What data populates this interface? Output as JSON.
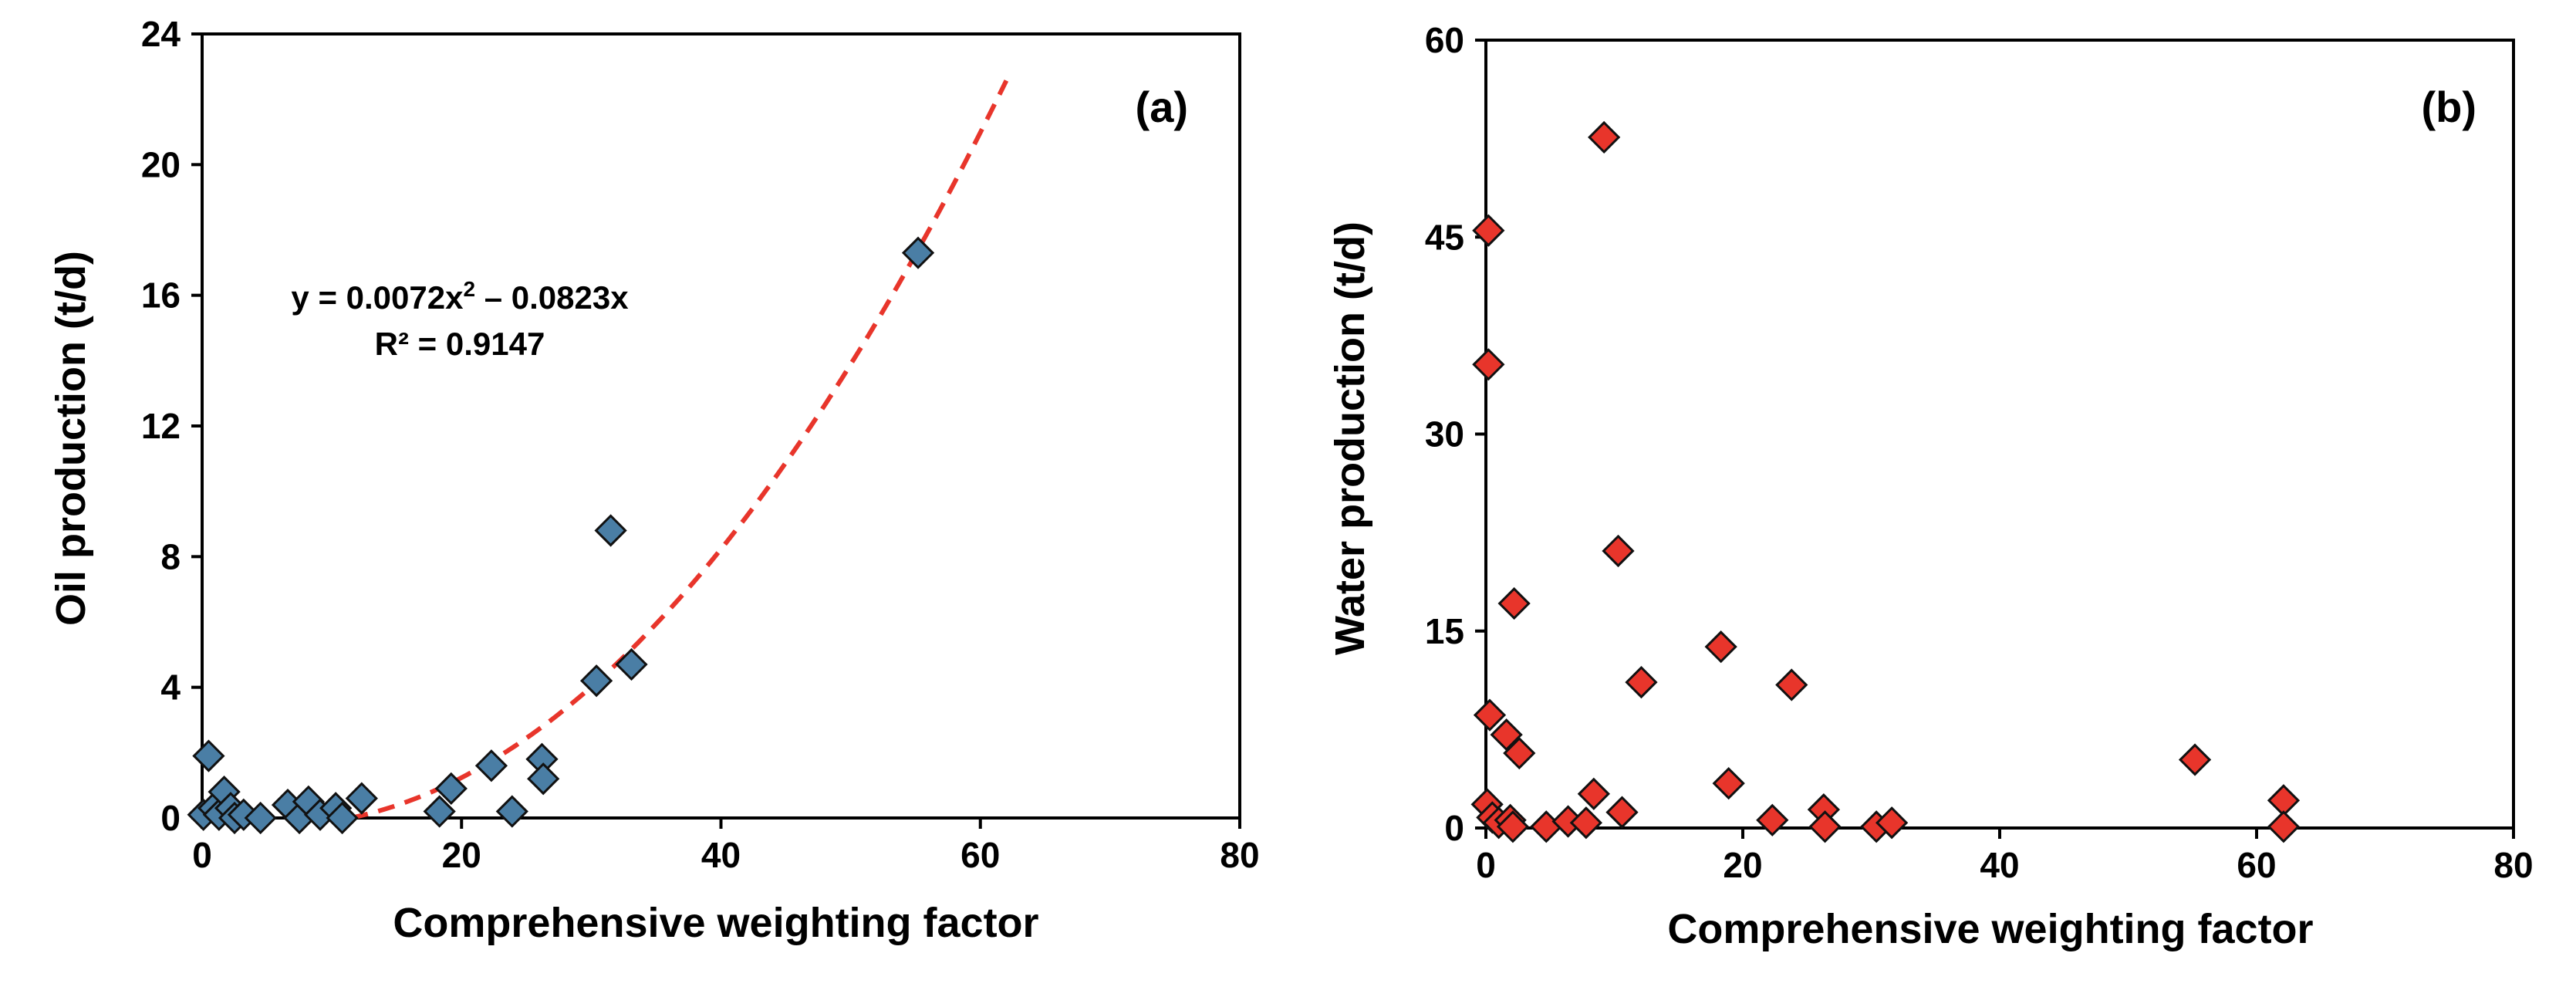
{
  "chart_data": [
    {
      "type": "scatter",
      "panel_label": "(a)",
      "xlabel": "Comprehensive weighting factor",
      "ylabel": "Oil production (t/d)",
      "xlim": [
        0,
        80
      ],
      "ylim": [
        0,
        24
      ],
      "xticks": [
        0,
        20,
        40,
        60,
        80
      ],
      "yticks": [
        0,
        4,
        8,
        12,
        16,
        20,
        24
      ],
      "marker_color": "#4a7ea5",
      "trend_color": "#e8352b",
      "equation": "y = 0.0072x",
      "equation_exponent": "2",
      "equation_tail": " – 0.0823x",
      "r_squared": "R² = 0.9147",
      "trend": {
        "a": 0.0072,
        "b": -0.0823,
        "c": 0,
        "x_range": [
          11.5,
          62
        ]
      },
      "series": [
        {
          "name": "Oil production",
          "points": [
            [
              0.1,
              0.1
            ],
            [
              0.5,
              1.9
            ],
            [
              0.9,
              0.3
            ],
            [
              1.3,
              0.1
            ],
            [
              1.7,
              0.8
            ],
            [
              2.2,
              0.3
            ],
            [
              2.5,
              0.0
            ],
            [
              3.2,
              0.1
            ],
            [
              4.5,
              0.0
            ],
            [
              6.6,
              0.4
            ],
            [
              7.5,
              0.0
            ],
            [
              8.2,
              0.5
            ],
            [
              9.1,
              0.1
            ],
            [
              10.3,
              0.3
            ],
            [
              10.8,
              0.0
            ],
            [
              12.3,
              0.6
            ],
            [
              18.3,
              0.2
            ],
            [
              19.2,
              0.9
            ],
            [
              22.3,
              1.6
            ],
            [
              23.9,
              0.2
            ],
            [
              26.2,
              1.8
            ],
            [
              26.3,
              1.2
            ],
            [
              30.4,
              4.2
            ],
            [
              31.5,
              8.8
            ],
            [
              33.1,
              4.7
            ],
            [
              55.2,
              17.3
            ]
          ]
        }
      ]
    },
    {
      "type": "scatter",
      "panel_label": "(b)",
      "xlabel": "Comprehensive weighting factor",
      "ylabel": "Water production (t/d)",
      "xlim": [
        0,
        80
      ],
      "ylim": [
        0,
        60
      ],
      "xticks": [
        0,
        20,
        40,
        60,
        80
      ],
      "yticks": [
        0,
        15,
        30,
        45,
        60
      ],
      "marker_color": "#e8352b",
      "series": [
        {
          "name": "Water production",
          "points": [
            [
              0.2,
              45.5
            ],
            [
              0.2,
              35.3
            ],
            [
              0.3,
              8.6
            ],
            [
              0.1,
              1.8
            ],
            [
              0.5,
              0.8
            ],
            [
              1.0,
              0.4
            ],
            [
              1.6,
              7.1
            ],
            [
              1.9,
              0.6
            ],
            [
              2.2,
              17.1
            ],
            [
              2.1,
              0.1
            ],
            [
              2.6,
              5.7
            ],
            [
              4.7,
              0.1
            ],
            [
              6.4,
              0.5
            ],
            [
              7.8,
              0.4
            ],
            [
              8.4,
              2.6
            ],
            [
              9.2,
              52.6
            ],
            [
              10.3,
              21.1
            ],
            [
              10.6,
              1.2
            ],
            [
              12.1,
              11.1
            ],
            [
              18.3,
              13.8
            ],
            [
              18.9,
              3.4
            ],
            [
              22.3,
              0.6
            ],
            [
              23.8,
              10.9
            ],
            [
              26.3,
              1.4
            ],
            [
              26.4,
              0.1
            ],
            [
              30.4,
              0.1
            ],
            [
              31.6,
              0.4
            ],
            [
              55.2,
              5.2
            ],
            [
              62.1,
              2.1
            ],
            [
              62.1,
              0.1
            ]
          ]
        }
      ]
    }
  ]
}
